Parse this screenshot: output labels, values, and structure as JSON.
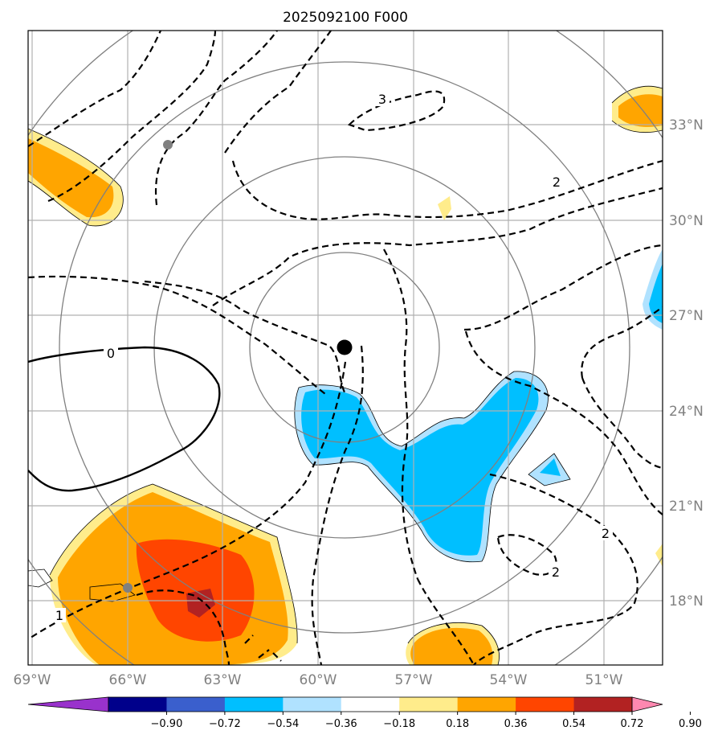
{
  "title": "2025092100 F000",
  "map": {
    "lon_ticks": [
      "69°W",
      "66°W",
      "63°W",
      "60°W",
      "57°W",
      "54°W",
      "51°W"
    ],
    "lat_ticks": [
      "33°N",
      "30°N",
      "27°N",
      "24°N",
      "21°N",
      "18°N"
    ],
    "center": {
      "lon": -59.1,
      "lat": 26.0
    },
    "extent": {
      "lon": [
        -69,
        -49
      ],
      "lat": [
        15.8,
        35.8
      ]
    },
    "contour_labels": [
      "3",
      "2",
      "0",
      "2",
      "2",
      "1"
    ]
  },
  "colorbar": {
    "tick_labels": [
      "−0.90",
      "−0.72",
      "−0.54",
      "−0.36",
      "−0.18",
      "0.18",
      "0.36",
      "0.54",
      "0.72",
      "0.90"
    ],
    "colors": [
      "#9932cc",
      "#00008b",
      "#3a5fcd",
      "#00bfff",
      "#b0e2ff",
      "#ffffff",
      "#ffec8b",
      "#ffa500",
      "#ff4500",
      "#b22222",
      "#ff88b0"
    ]
  }
}
